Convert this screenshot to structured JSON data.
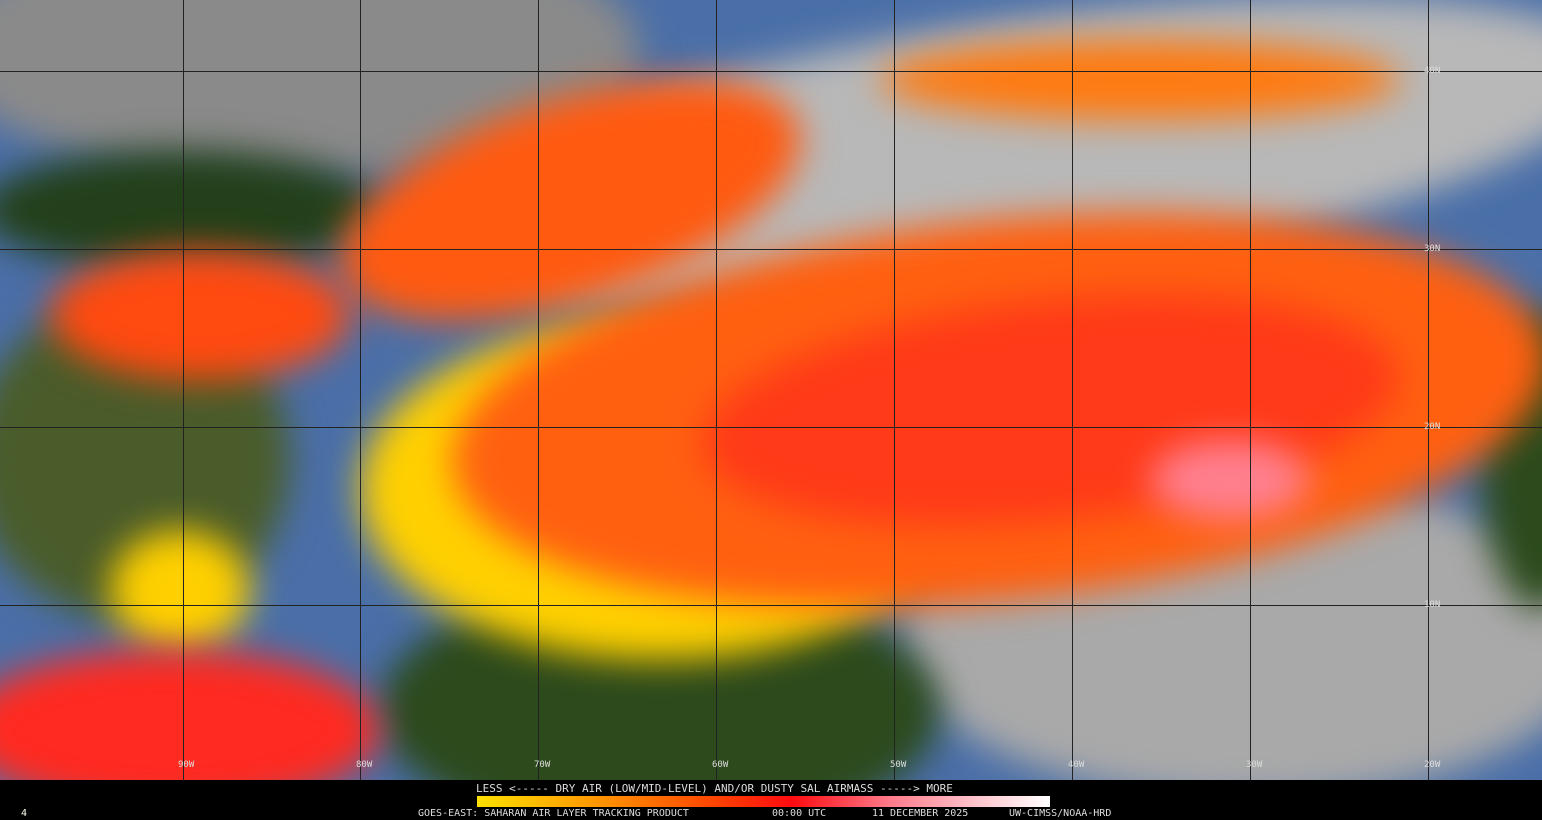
{
  "map": {
    "product": "GOES-EAST: SAHARAN AIR LAYER TRACKING PRODUCT",
    "time": "00:00 UTC",
    "date": "11 DECEMBER 2025",
    "credit": "UW-CIMSS/NOAA-HRD",
    "frame_number": "4",
    "legend": {
      "title": "LESS <----- DRY AIR (LOW/MID-LEVEL) AND/OR DUSTY SAL AIRMASS -----> MORE",
      "colors": [
        "#ffe000",
        "#ff9a00",
        "#ff4a00",
        "#ff0a10",
        "#ff7a8a",
        "#ffc8d0",
        "#ffffff"
      ]
    },
    "latitude_labels": [
      "40N",
      "30N",
      "20N",
      "10N"
    ],
    "longitude_labels": [
      "90W",
      "80W",
      "70W",
      "60W",
      "50W",
      "40W",
      "30W",
      "20W"
    ]
  }
}
